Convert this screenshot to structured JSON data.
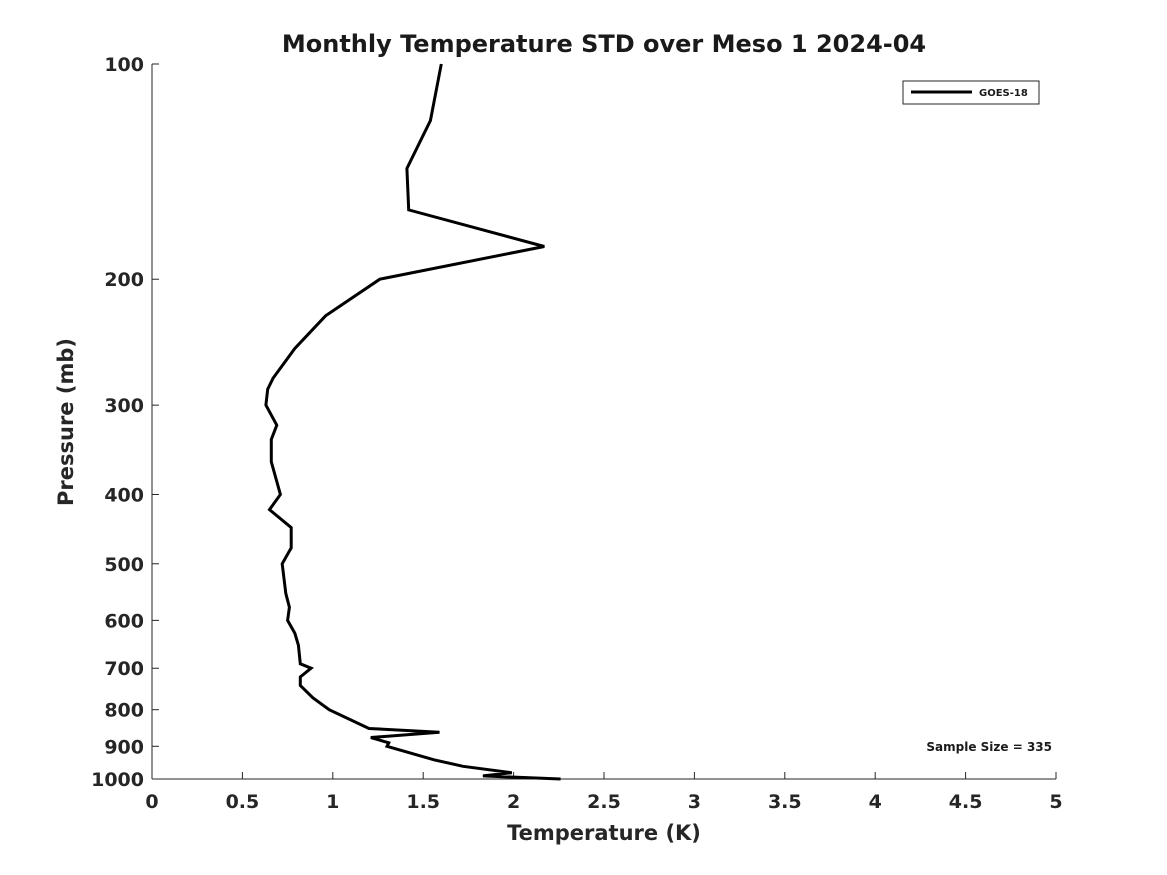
{
  "chart_data": {
    "type": "line",
    "title": "Monthly Temperature STD over Meso 1  2024-04",
    "xlabel": "Temperature (K)",
    "ylabel": "Pressure (mb)",
    "xlim": [
      0,
      5
    ],
    "ylim": [
      1000,
      100
    ],
    "yscale": "log",
    "y_reversed": true,
    "grid": false,
    "legend_position": "top-right",
    "x_ticks": [
      "0",
      "0.5",
      "1",
      "1.5",
      "2",
      "2.5",
      "3",
      "3.5",
      "4",
      "4.5",
      "5"
    ],
    "y_ticks": [
      "100",
      "200",
      "300",
      "400",
      "500",
      "600",
      "700",
      "800",
      "900",
      "1000"
    ],
    "series": [
      {
        "name": "GOES-18",
        "color": "#000000",
        "x": [
          1.6,
          1.54,
          1.41,
          1.42,
          2.17,
          1.26,
          0.96,
          0.79,
          0.67,
          0.64,
          0.63,
          0.69,
          0.66,
          0.66,
          0.71,
          0.65,
          0.77,
          0.77,
          0.72,
          0.74,
          0.76,
          0.75,
          0.79,
          0.81,
          0.82,
          0.88,
          0.82,
          0.82,
          0.89,
          0.98,
          1.2,
          1.59,
          1.21,
          1.31,
          1.3,
          1.56,
          1.72,
          1.99,
          1.83,
          2.26
        ],
        "y": [
          100,
          120,
          140,
          160,
          180,
          200,
          225,
          250,
          275,
          285,
          300,
          320,
          335,
          360,
          400,
          420,
          445,
          475,
          500,
          550,
          575,
          600,
          625,
          650,
          690,
          700,
          720,
          740,
          770,
          800,
          850,
          860,
          875,
          890,
          900,
          940,
          960,
          980,
          990,
          1000
        ]
      }
    ],
    "annotation": "Sample Size = 335"
  }
}
